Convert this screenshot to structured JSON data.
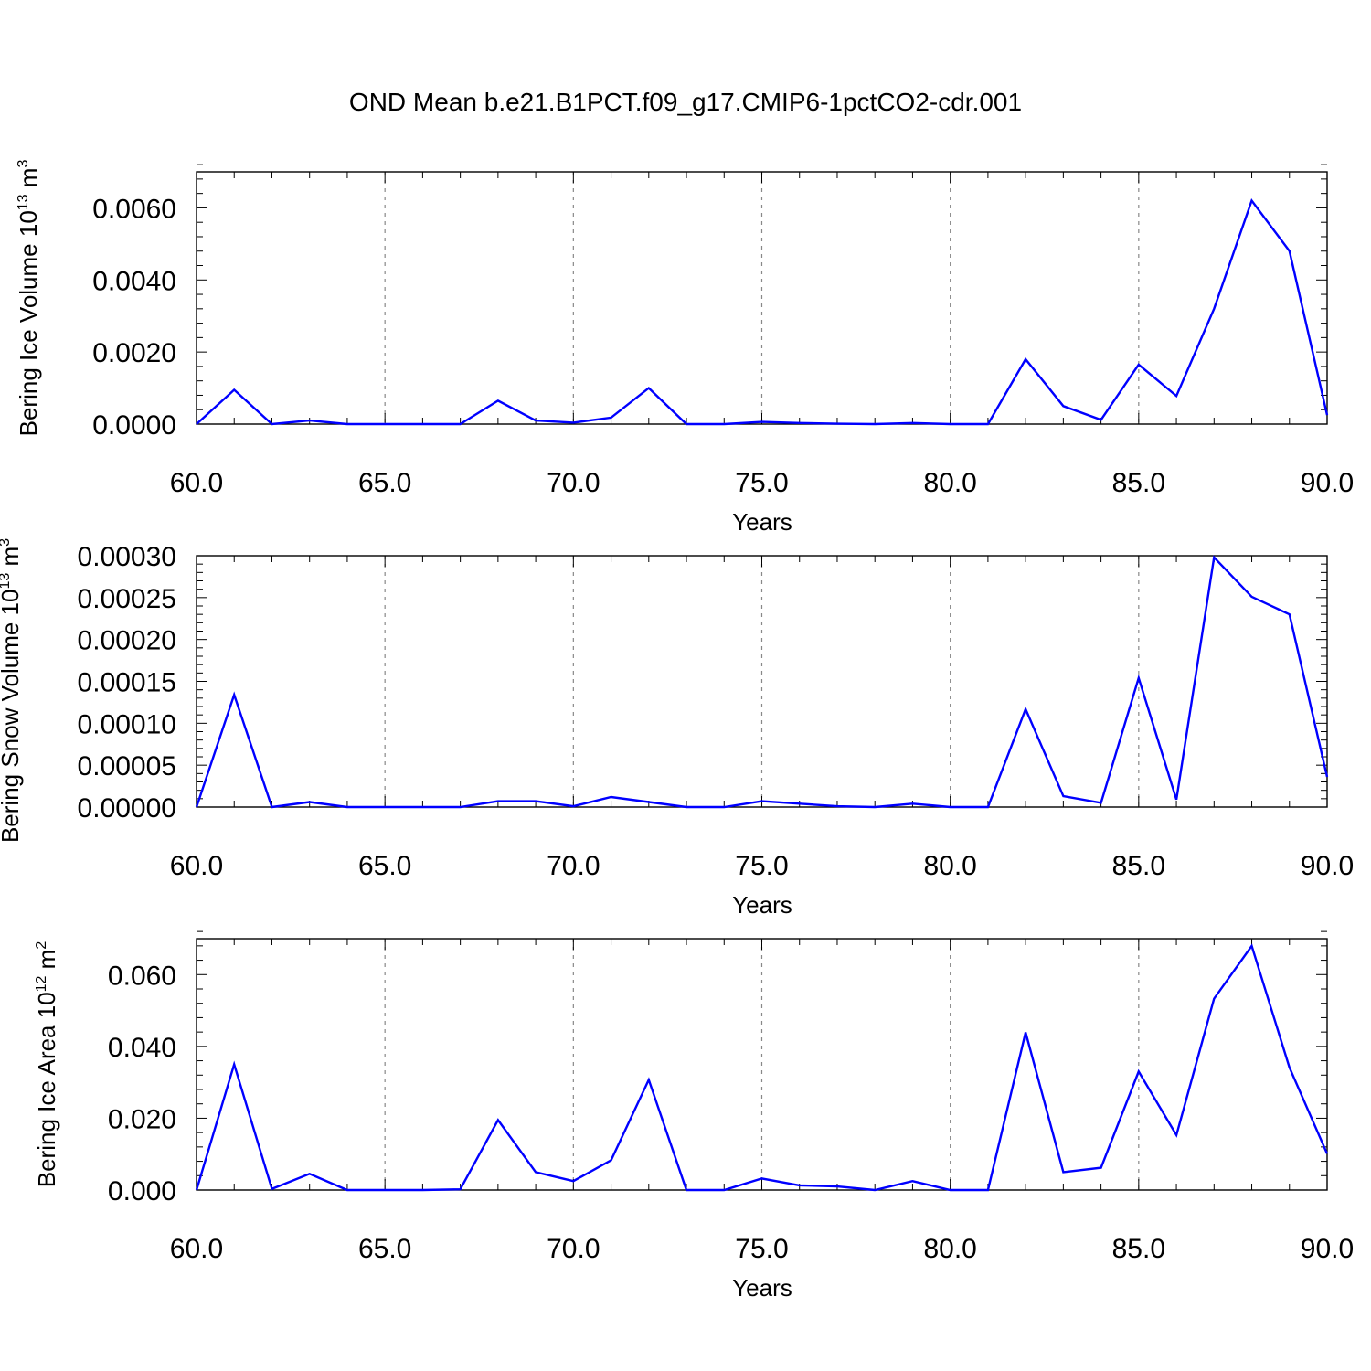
{
  "title": "OND Mean b.e21.B1PCT.f09_g17.CMIP6-1pctCO2-cdr.001",
  "colors": {
    "series": "#0000ff",
    "axis": "#000000",
    "grid": "#888888"
  },
  "chart_data": [
    {
      "type": "line",
      "xlabel": "Years",
      "ylabel": {
        "text": "Bering Ice Volume 10",
        "sup1": "13",
        "mid": " m",
        "sup2": "3"
      },
      "xlim": [
        60,
        90
      ],
      "ylim": [
        0,
        0.007
      ],
      "xticks": [
        60,
        65,
        70,
        75,
        80,
        85,
        90
      ],
      "xtick_labels": [
        "60.0",
        "65.0",
        "70.0",
        "75.0",
        "80.0",
        "85.0",
        "90.0"
      ],
      "yticks": [
        0,
        0.002,
        0.004,
        0.006
      ],
      "ytick_labels": [
        "0.0000",
        "0.0020",
        "0.0040",
        "0.0060"
      ],
      "grid": "vertical-dashed",
      "x": [
        60,
        61,
        62,
        63,
        64,
        65,
        66,
        67,
        68,
        69,
        70,
        71,
        72,
        73,
        74,
        75,
        76,
        77,
        78,
        79,
        80,
        81,
        82,
        83,
        84,
        85,
        86,
        87,
        88,
        89,
        90
      ],
      "values": [
        0.0,
        0.00095,
        0.0,
        0.0001,
        0.0,
        0.0,
        0.0,
        0.0,
        0.00065,
        0.0001,
        4e-05,
        0.00018,
        0.001,
        0.0,
        0.0,
        6e-05,
        3e-05,
        1e-05,
        0.0,
        3e-05,
        0.0,
        0.0,
        0.0018,
        0.0005,
        0.00012,
        0.00165,
        0.00078,
        0.0032,
        0.0062,
        0.0048,
        0.00025
      ]
    },
    {
      "type": "line",
      "xlabel": "Years",
      "ylabel": {
        "text": "Bering Snow Volume 10",
        "sup1": "13",
        "mid": " m",
        "sup2": "3"
      },
      "xlim": [
        60,
        90
      ],
      "ylim": [
        0,
        0.0003
      ],
      "xticks": [
        60,
        65,
        70,
        75,
        80,
        85,
        90
      ],
      "xtick_labels": [
        "60.0",
        "65.0",
        "70.0",
        "75.0",
        "80.0",
        "85.0",
        "90.0"
      ],
      "yticks": [
        0,
        5e-05,
        0.0001,
        0.00015,
        0.0002,
        0.00025,
        0.0003
      ],
      "ytick_labels": [
        "0.00000",
        "0.00005",
        "0.00010",
        "0.00015",
        "0.00020",
        "0.00025",
        "0.00030"
      ],
      "grid": "vertical-dashed",
      "x": [
        60,
        61,
        62,
        63,
        64,
        65,
        66,
        67,
        68,
        69,
        70,
        71,
        72,
        73,
        74,
        75,
        76,
        77,
        78,
        79,
        80,
        81,
        82,
        83,
        84,
        85,
        86,
        87,
        88,
        89,
        90
      ],
      "values": [
        0.0,
        0.000134,
        0.0,
        6e-06,
        0.0,
        0.0,
        0.0,
        0.0,
        7e-06,
        7e-06,
        1e-06,
        1.2e-05,
        6e-06,
        0.0,
        0.0,
        7e-06,
        4e-06,
        1e-06,
        0.0,
        4e-06,
        0.0,
        0.0,
        0.000117,
        1.3e-05,
        5e-06,
        0.000154,
        9e-06,
        0.000298,
        0.000251,
        0.00023,
        3.6e-05
      ]
    },
    {
      "type": "line",
      "xlabel": "Years",
      "ylabel": {
        "text": "Bering Ice Area 10",
        "sup1": "12",
        "mid": " m",
        "sup2": "2"
      },
      "xlim": [
        60,
        90
      ],
      "ylim": [
        0,
        0.07
      ],
      "xticks": [
        60,
        65,
        70,
        75,
        80,
        85,
        90
      ],
      "xtick_labels": [
        "60.0",
        "65.0",
        "70.0",
        "75.0",
        "80.0",
        "85.0",
        "90.0"
      ],
      "yticks": [
        0,
        0.02,
        0.04,
        0.06
      ],
      "ytick_labels": [
        "0.000",
        "0.020",
        "0.040",
        "0.060"
      ],
      "grid": "vertical-dashed",
      "x": [
        60,
        61,
        62,
        63,
        64,
        65,
        66,
        67,
        68,
        69,
        70,
        71,
        72,
        73,
        74,
        75,
        76,
        77,
        78,
        79,
        80,
        81,
        82,
        83,
        84,
        85,
        86,
        87,
        88,
        89,
        90
      ],
      "values": [
        0.0,
        0.035,
        0.0003,
        0.0045,
        0.0,
        0.0,
        0.0,
        0.0002,
        0.0195,
        0.005,
        0.0025,
        0.0083,
        0.0307,
        0.0,
        0.0,
        0.0032,
        0.0013,
        0.001,
        0.0,
        0.0025,
        0.0,
        0.0,
        0.0439,
        0.005,
        0.0062,
        0.033,
        0.0153,
        0.0533,
        0.068,
        0.0341,
        0.0101
      ]
    }
  ]
}
